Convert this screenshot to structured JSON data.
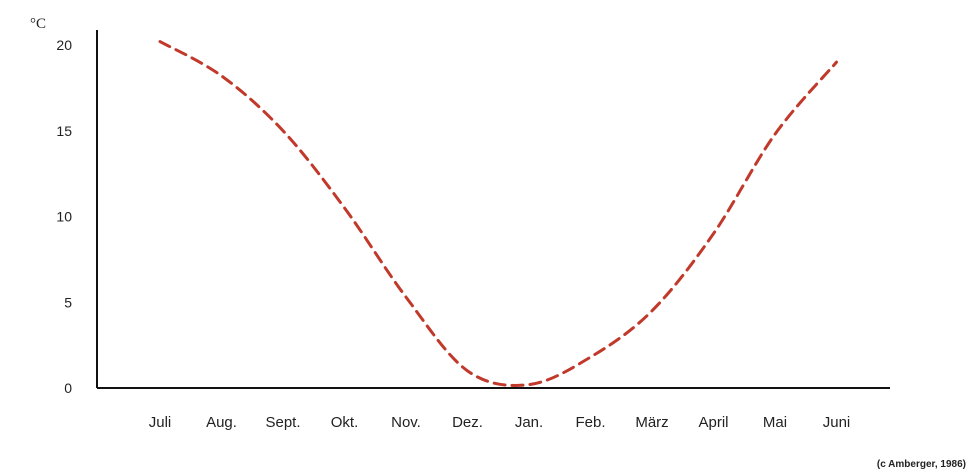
{
  "chart_data": {
    "type": "line",
    "unit_label": "°C",
    "categories": [
      "Juli",
      "Aug.",
      "Sept.",
      "Okt.",
      "Nov.",
      "Dez.",
      "Jan.",
      "Feb.",
      "März",
      "April",
      "Mai",
      "Juni"
    ],
    "yticks": [
      "0",
      "5",
      "10",
      "15",
      "20"
    ],
    "ylim": [
      0,
      20
    ],
    "series": [
      {
        "values": [
          20.2,
          18.2,
          15.0,
          10.5,
          5.3,
          1.0,
          0.2,
          1.8,
          4.5,
          9.0,
          14.8,
          19.0
        ]
      }
    ],
    "line_color": "#c0392b",
    "line_style": "dashed",
    "grid": false,
    "legend": "none",
    "source": "(c Amberger, 1986)"
  }
}
